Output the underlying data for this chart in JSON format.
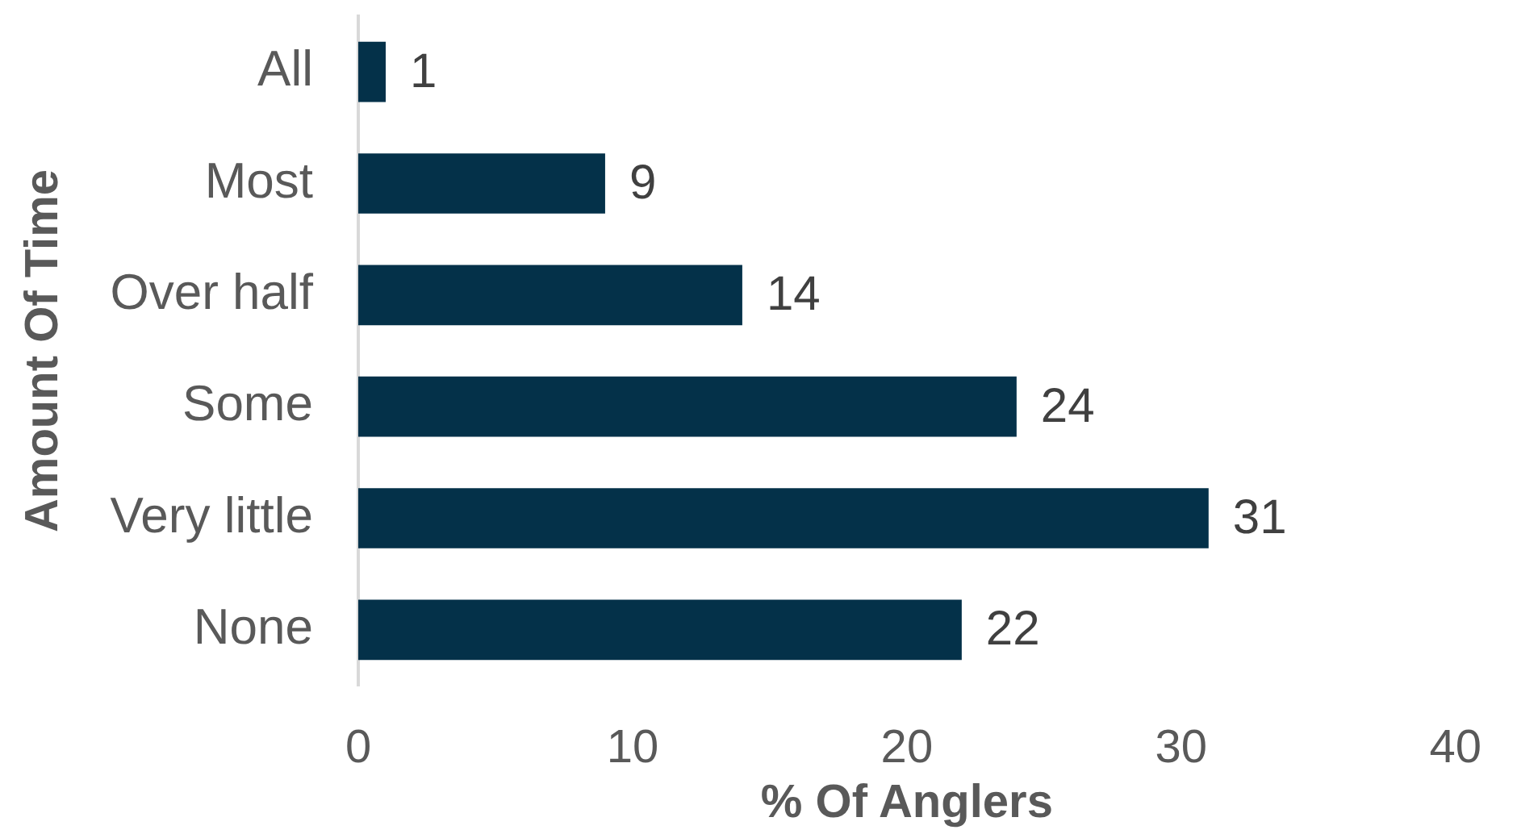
{
  "chart_data": {
    "type": "bar",
    "orientation": "horizontal",
    "categories": [
      "All",
      "Most",
      "Over half",
      "Some",
      "Very little",
      "None"
    ],
    "values": [
      1,
      9,
      14,
      24,
      31,
      22
    ],
    "color": "#043149",
    "xlim": [
      0,
      40
    ],
    "xticks": [
      0,
      10,
      20,
      30,
      40
    ],
    "xlabel": "% Of Anglers",
    "ylabel": "Amount Of Time",
    "data_labels": true
  }
}
